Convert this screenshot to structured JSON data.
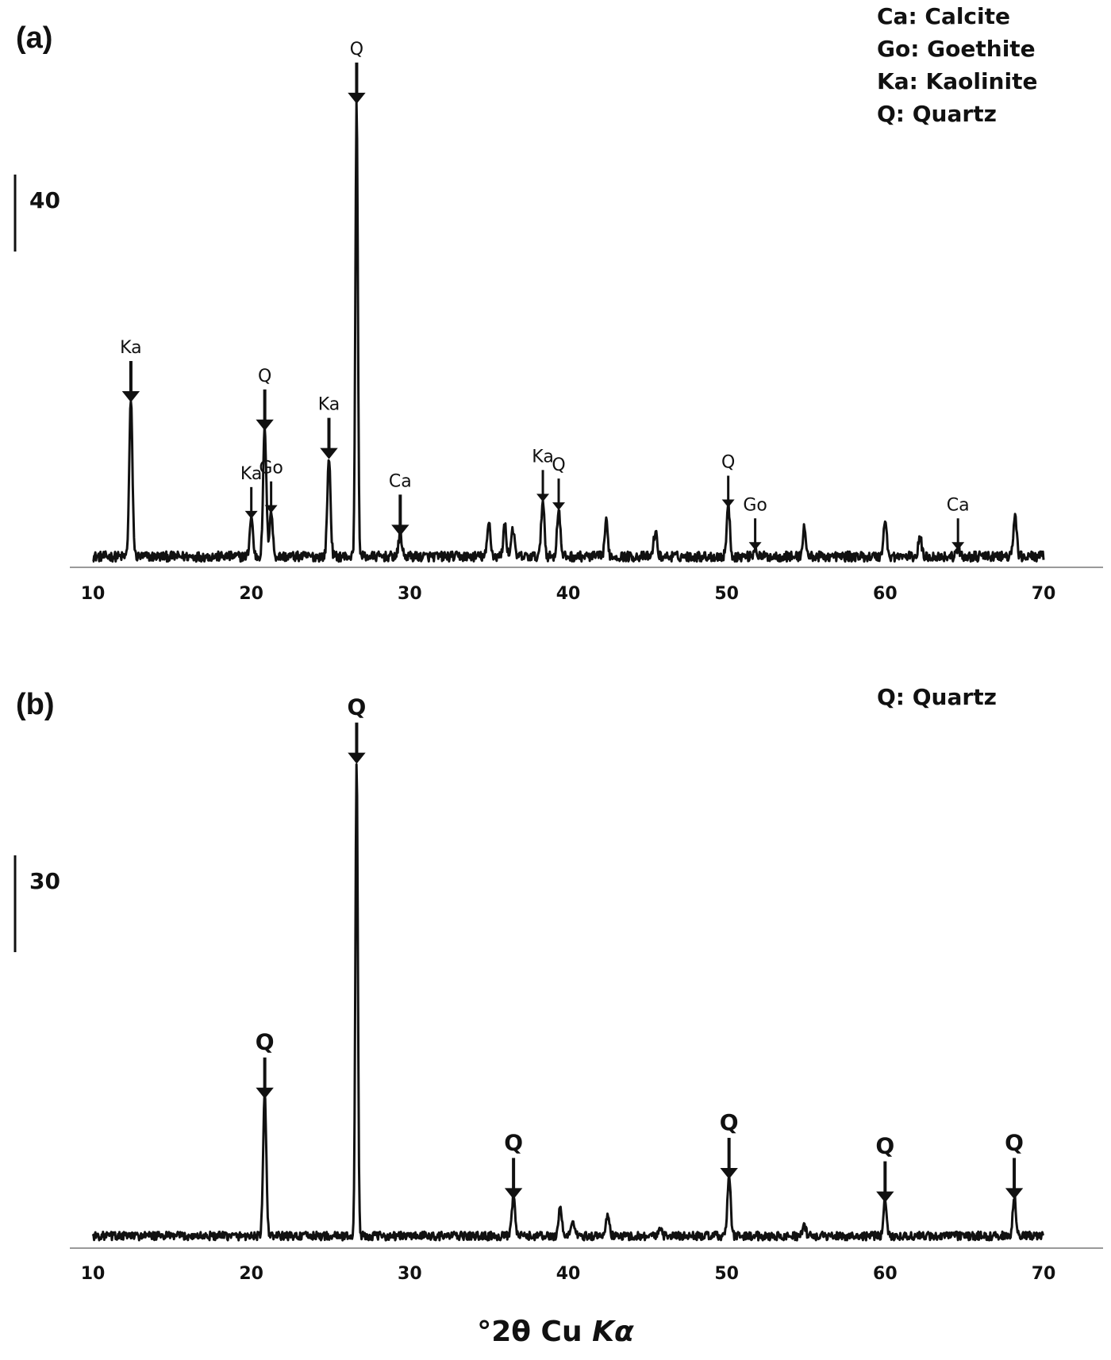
{
  "chart_data": [
    {
      "type": "line",
      "panel": "(a)",
      "legend": [
        "Ca: Calcite",
        "Go: Goethite",
        "Ka: Kaolinite",
        "Q: Quartz"
      ],
      "xlim": [
        10,
        70
      ],
      "xticks": [
        10,
        20,
        30,
        40,
        50,
        60,
        70
      ],
      "scale_bar_label": "40",
      "scale_bar_value": 40,
      "ylim": [
        0,
        170
      ],
      "noise_amplitude": 2.2,
      "peaks": [
        {
          "x": 12.4,
          "y": 55,
          "label": "Ka",
          "arrow": "large"
        },
        {
          "x": 20.0,
          "y": 14,
          "label": "Ka",
          "arrow": "small"
        },
        {
          "x": 20.85,
          "y": 45,
          "label": "Q",
          "arrow": "large"
        },
        {
          "x": 21.25,
          "y": 16,
          "label": "Go",
          "arrow": "small"
        },
        {
          "x": 24.9,
          "y": 35,
          "label": "Ka",
          "arrow": "large"
        },
        {
          "x": 26.65,
          "y": 160,
          "label": "Q",
          "arrow": "large"
        },
        {
          "x": 29.4,
          "y": 8,
          "label": "Ca",
          "arrow": "large"
        },
        {
          "x": 35.0,
          "y": 12,
          "label": "",
          "arrow": ""
        },
        {
          "x": 36.0,
          "y": 11,
          "label": "",
          "arrow": ""
        },
        {
          "x": 36.5,
          "y": 10,
          "label": "",
          "arrow": ""
        },
        {
          "x": 38.4,
          "y": 20,
          "label": "Ka",
          "arrow": "small"
        },
        {
          "x": 39.4,
          "y": 17,
          "label": "Q",
          "arrow": "small"
        },
        {
          "x": 42.4,
          "y": 12,
          "label": "",
          "arrow": ""
        },
        {
          "x": 45.5,
          "y": 9,
          "label": "",
          "arrow": ""
        },
        {
          "x": 50.1,
          "y": 18,
          "label": "Q",
          "arrow": "small"
        },
        {
          "x": 51.8,
          "y": 3,
          "label": "Go",
          "arrow": "small"
        },
        {
          "x": 54.9,
          "y": 10,
          "label": "",
          "arrow": ""
        },
        {
          "x": 60.0,
          "y": 13,
          "label": "",
          "arrow": ""
        },
        {
          "x": 62.2,
          "y": 7,
          "label": "",
          "arrow": ""
        },
        {
          "x": 64.6,
          "y": 3,
          "label": "Ca",
          "arrow": "small"
        },
        {
          "x": 68.2,
          "y": 15,
          "label": "",
          "arrow": ""
        }
      ]
    },
    {
      "type": "line",
      "panel": "(b)",
      "legend": [
        "Q: Quartz"
      ],
      "xlim": [
        10,
        70
      ],
      "xticks": [
        10,
        20,
        30,
        40,
        50,
        60,
        70
      ],
      "scale_bar_label": "30",
      "scale_bar_value": 30,
      "ylim": [
        0,
        145
      ],
      "noise_amplitude": 1.6,
      "peaks": [
        {
          "x": 20.85,
          "y": 42,
          "label": "Q",
          "arrow": "large"
        },
        {
          "x": 26.65,
          "y": 142,
          "label": "Q",
          "arrow": "large"
        },
        {
          "x": 36.55,
          "y": 12,
          "label": "Q",
          "arrow": "large"
        },
        {
          "x": 39.5,
          "y": 9,
          "label": "",
          "arrow": ""
        },
        {
          "x": 40.3,
          "y": 5,
          "label": "",
          "arrow": ""
        },
        {
          "x": 42.5,
          "y": 7,
          "label": "",
          "arrow": ""
        },
        {
          "x": 45.8,
          "y": 3,
          "label": "",
          "arrow": ""
        },
        {
          "x": 50.15,
          "y": 18,
          "label": "Q",
          "arrow": "large"
        },
        {
          "x": 54.9,
          "y": 3,
          "label": "",
          "arrow": ""
        },
        {
          "x": 60.0,
          "y": 11,
          "label": "Q",
          "arrow": "large"
        },
        {
          "x": 68.15,
          "y": 12,
          "label": "Q",
          "arrow": "large"
        }
      ]
    }
  ],
  "xlabel": "°2θ Cu ",
  "xlabel_italic": "Kα"
}
